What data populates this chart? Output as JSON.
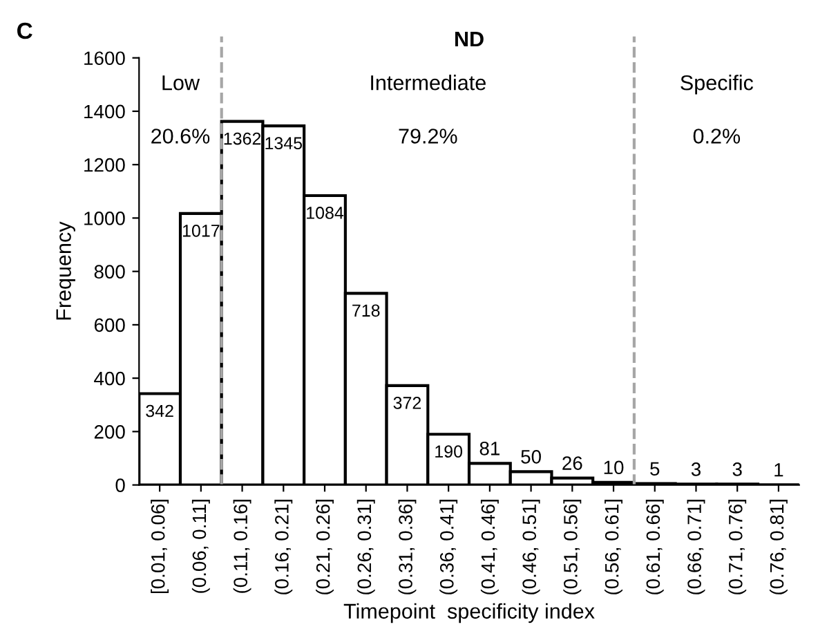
{
  "chart_data": {
    "type": "bar",
    "title": "ND",
    "xlabel": "Timepoint  specificity index",
    "ylabel": "Frequency",
    "categories": [
      "[0.01, 0.06]",
      "(0.06, 0.11]",
      "(0.11, 0.16]",
      "(0.16, 0.21]",
      "(0.21, 0.26]",
      "(0.26, 0.31]",
      "(0.31, 0.36]",
      "(0.36, 0.41]",
      "(0.41, 0.46]",
      "(0.46, 0.51]",
      "(0.51, 0.56]",
      "(0.56, 0.61]",
      "(0.61, 0.66]",
      "(0.66, 0.71]",
      "(0.71, 0.76]",
      "(0.76, 0.81]"
    ],
    "values": [
      342,
      1017,
      1362,
      1345,
      1084,
      718,
      372,
      190,
      81,
      50,
      26,
      10,
      5,
      3,
      3,
      1
    ],
    "color": "#ffffff",
    "data_labels": true,
    "ylim": [
      0,
      1600
    ],
    "yticks": [
      0,
      200,
      400,
      600,
      800,
      1000,
      1200,
      1400,
      1600
    ],
    "grid": false,
    "annotations": [
      "C",
      "Low",
      "20.6%",
      "Intermediate",
      "79.2%",
      "Specific",
      "0.2%"
    ]
  }
}
